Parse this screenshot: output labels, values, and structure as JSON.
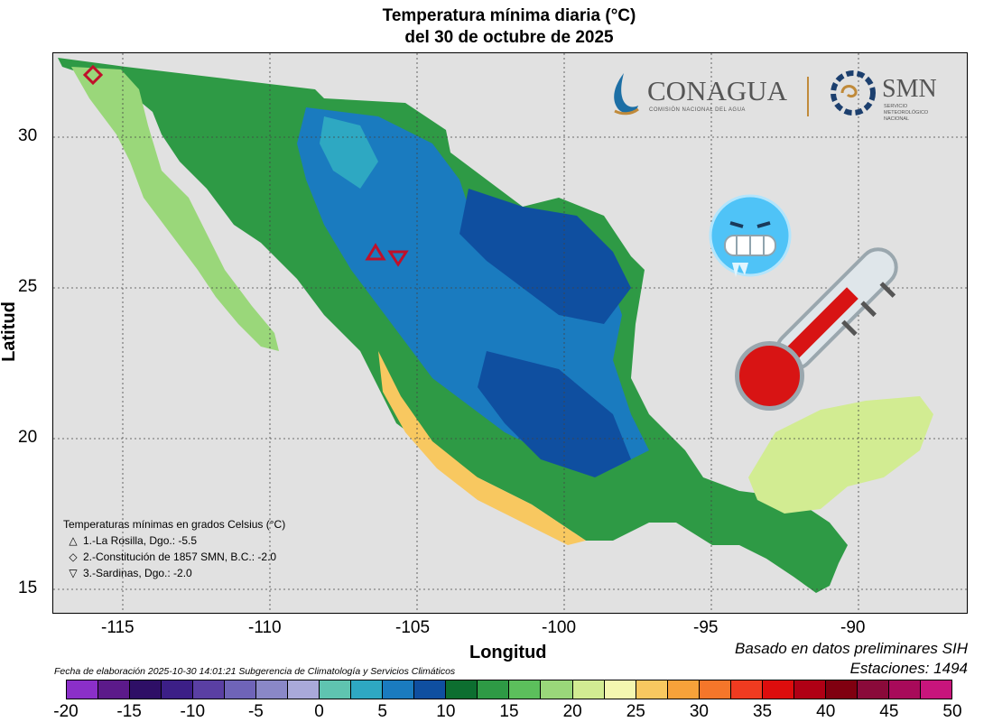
{
  "title_line1": "Temperatura mínima diaria (°C)",
  "title_line2": "del 30 de octubre de 2025",
  "axes": {
    "xlabel": "Longitud",
    "ylabel": "Latitud",
    "xticks": [
      "-115",
      "-110",
      "-105",
      "-100",
      "-95",
      "-90"
    ],
    "yticks": [
      "30",
      "25",
      "20",
      "15"
    ],
    "lon_range": [
      -117.5,
      -86.5
    ],
    "lat_range": [
      14,
      32.8
    ]
  },
  "logos": {
    "conagua": "CONAGUA",
    "conagua_sub": "COMISIÓN NACIONAL DEL AGUA",
    "smn": "SMN",
    "smn_sub1": "SERVICIO",
    "smn_sub2": "METEOROLÓGICO",
    "smn_sub3": "NACIONAL"
  },
  "legend": {
    "title": "Temperaturas mínimas en grados Celsius (°C)",
    "items": [
      {
        "symbol": "△",
        "text": "1.-La Rosilla, Dgo.: -5.5",
        "lon": -106.3,
        "lat": 26.2
      },
      {
        "symbol": "◇",
        "text": "2.-Constitución de 1857 SMN, B.C.: -2.0",
        "lon": -116.1,
        "lat": 32.1
      },
      {
        "symbol": "▽",
        "text": "3.-Sardinas, Dgo.: -2.0",
        "lon": -105.6,
        "lat": 26.0
      }
    ]
  },
  "footer": {
    "fecha": "Fecha de elaboración 2025-10-30 14:01:21 Subgerencia de Climatología y Servicios Climáticos",
    "basado": "Basado en datos preliminares SIH",
    "estaciones": "Estaciones:  1494"
  },
  "colorbar": {
    "labels": [
      "-20",
      "-15",
      "-10",
      "-5",
      "0",
      "5",
      "10",
      "15",
      "20",
      "25",
      "30",
      "35",
      "40",
      "45",
      "50"
    ],
    "colors": [
      "#8b2fc9",
      "#5c1a8a",
      "#2e0f66",
      "#3c1f87",
      "#5a3fa3",
      "#6f64b8",
      "#8a88c7",
      "#a9a9d9",
      "#5fc4b0",
      "#2ea8c2",
      "#1a7bbf",
      "#0f4fa0",
      "#0d6e30",
      "#2e9a45",
      "#5cbf5c",
      "#9ad77a",
      "#d2ec92",
      "#f4f7b0",
      "#f8c860",
      "#f7a23a",
      "#f5762a",
      "#f03b20",
      "#dd0d0d",
      "#b00015",
      "#800010",
      "#8a0a3a",
      "#a80a5a",
      "#c8157c"
    ]
  }
}
